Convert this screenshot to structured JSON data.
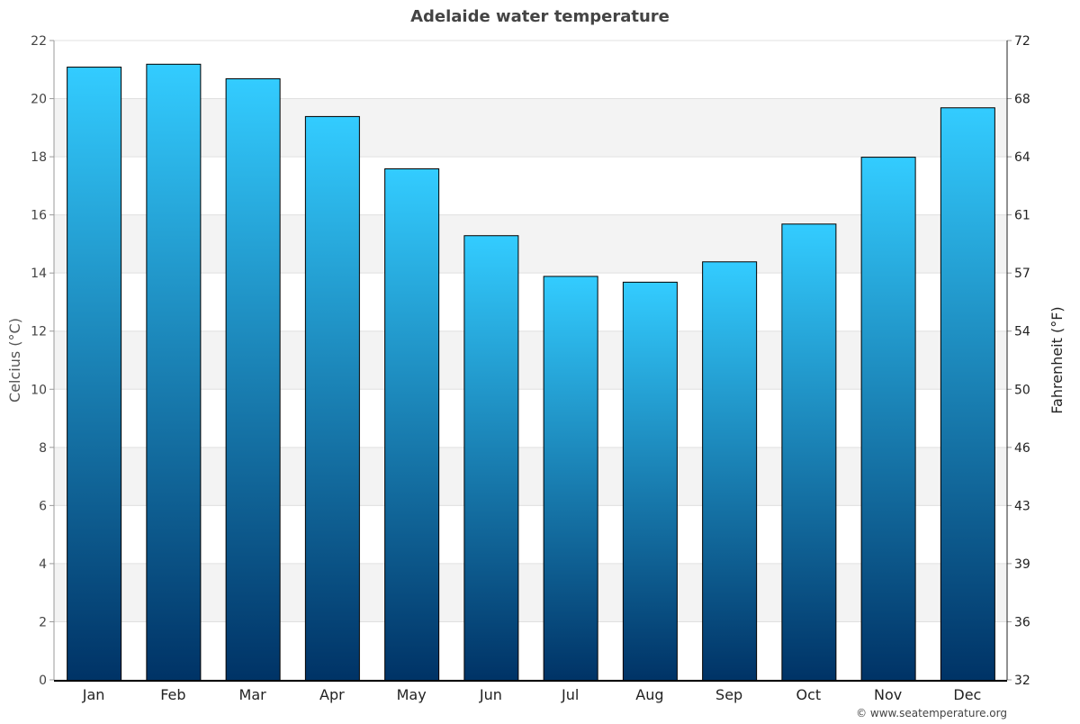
{
  "chart_data": {
    "type": "bar",
    "title": "Adelaide water temperature",
    "ylabel": "Celcius (°C)",
    "y2label": "Fahrenheit (°F)",
    "xlabel": "",
    "categories": [
      "Jan",
      "Feb",
      "Mar",
      "Apr",
      "May",
      "Jun",
      "Jul",
      "Aug",
      "Sep",
      "Oct",
      "Nov",
      "Dec"
    ],
    "values": [
      21.1,
      21.2,
      20.7,
      19.4,
      17.6,
      15.3,
      13.9,
      13.7,
      14.4,
      15.7,
      18.0,
      19.7
    ],
    "ylim": [
      0,
      22
    ],
    "yticks": [
      0,
      2,
      4,
      6,
      8,
      10,
      12,
      14,
      16,
      18,
      20,
      22
    ],
    "y2ticks": [
      32,
      36,
      39,
      43,
      46,
      50,
      54,
      57,
      61,
      64,
      68,
      72
    ],
    "grid": true,
    "legend": "none",
    "colors": {
      "bar_top": "#33ccff",
      "bar_bottom": "#003366",
      "band": "#f3f3f3",
      "title": "#444444"
    }
  },
  "footer": {
    "credit": "© www.seatemperature.org"
  }
}
